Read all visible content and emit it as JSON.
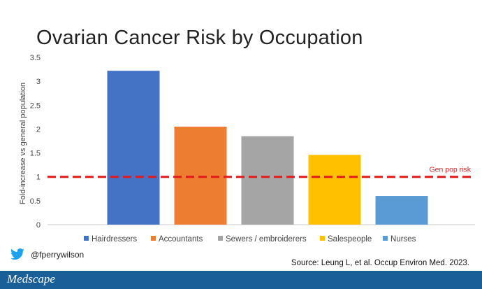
{
  "title": "Ovarian Cancer Risk by Occupation",
  "chart_data": {
    "type": "bar",
    "categories": [
      "Hairdressers",
      "Accountants",
      "Sewers / embroiderers",
      "Salespeople",
      "Nurses"
    ],
    "values": [
      3.22,
      2.05,
      1.85,
      1.46,
      0.6
    ],
    "colors": [
      "#4472c4",
      "#ed7d31",
      "#a5a5a5",
      "#ffc000",
      "#5b9bd5"
    ],
    "ylabel": "Fold-increase vs general population",
    "xlabel": "",
    "ylim": [
      0,
      3.5
    ],
    "yticks": [
      "0",
      "0.5",
      "1",
      "1.5",
      "2",
      "2.5",
      "3",
      "3.5"
    ],
    "ytick_values": [
      0,
      0.5,
      1,
      1.5,
      2,
      2.5,
      3,
      3.5
    ],
    "grid": false,
    "legend_position": "bottom",
    "reference_line": {
      "value": 1,
      "label": "Gen pop risk",
      "color": "#e31a1c",
      "style": "dashed"
    }
  },
  "handle": {
    "text": "@fperrywilson",
    "icon": "twitter-bird-icon",
    "color": "#1da1f2"
  },
  "source": "Source: Leung L, et al. Occup Environ Med. 2023.",
  "footer": {
    "logo_text": "Medscape",
    "background": "#1a5f98"
  }
}
